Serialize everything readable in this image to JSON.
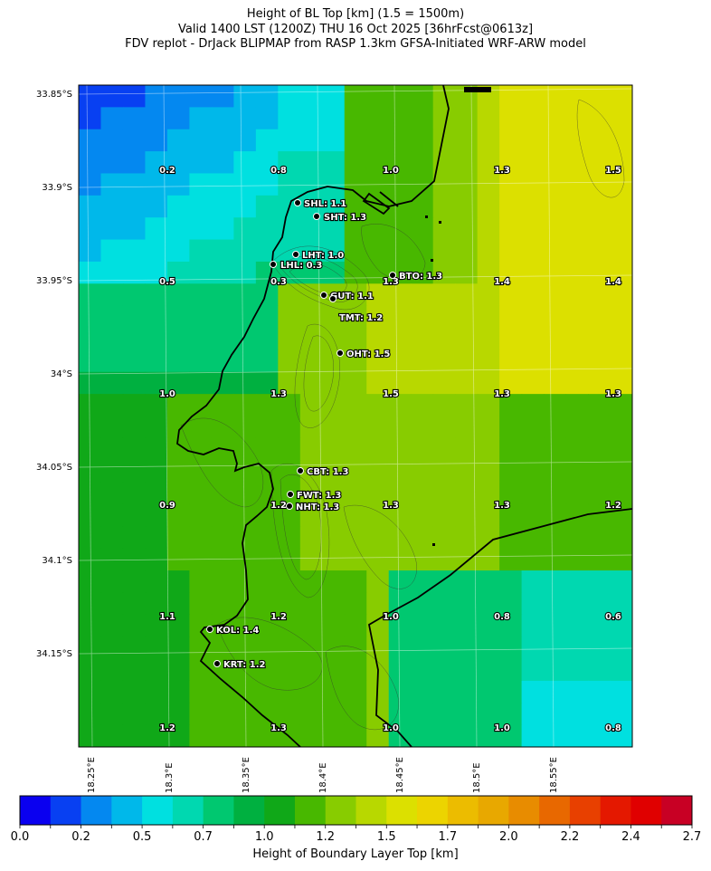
{
  "header": {
    "line1": "Height of BL Top [km] (1.5 = 1500m)",
    "line2": "Valid 1400 LST (1200Z) THU 16 Oct 2025 [36hrFcst@0613z]",
    "line3": "FDV replot - DrJack BLIPMAP from RASP 1.3km GFSA-Initiated WRF-ARW model"
  },
  "axes": {
    "lat_ticks": [
      "33.85°S",
      "33.9°S",
      "33.95°S",
      "34°S",
      "34.05°S",
      "34.1°S",
      "34.15°S"
    ],
    "lon_ticks": [
      "18.25°E",
      "18.3°E",
      "18.35°E",
      "18.4°E",
      "18.45°E",
      "18.5°E",
      "18.55°E"
    ]
  },
  "colorbar": {
    "label": "Height of Boundary Layer Top [km]",
    "ticks": [
      "0.0",
      "0.2",
      "0.5",
      "0.7",
      "1.0",
      "1.2",
      "1.5",
      "1.7",
      "2.0",
      "2.2",
      "2.4",
      "2.7"
    ],
    "colors": [
      "#0a00f0",
      "#0840f2",
      "#0488f0",
      "#00b8ea",
      "#00e0e0",
      "#00d8b0",
      "#00c870",
      "#00b040",
      "#10a818",
      "#48b800",
      "#88cc00",
      "#b8d800",
      "#dce000",
      "#ecd400",
      "#ecbc00",
      "#e8a800",
      "#e88c00",
      "#e86800",
      "#e84000",
      "#e41800",
      "#e00000",
      "#c80024"
    ]
  },
  "grid_values": [
    [
      "0.2",
      "0.8",
      "1.0",
      "1.3",
      "1.5"
    ],
    [
      "0.5",
      "0.3",
      "1.3",
      "1.4",
      "1.4"
    ],
    [
      "1.0",
      "1.3",
      "1.5",
      "1.3",
      "1.3"
    ],
    [
      "0.9",
      "1.2",
      "1.3",
      "1.3",
      "1.2"
    ],
    [
      "1.1",
      "1.2",
      "1.0",
      "0.8",
      "0.6"
    ],
    [
      "1.2",
      "1.3",
      "1.0",
      "1.0",
      "0.8"
    ]
  ],
  "sites": [
    {
      "label": "SHL: 1.1"
    },
    {
      "label": "SHT: 1.3"
    },
    {
      "label": "LHT: 1.0"
    },
    {
      "label": "LHL: 0.3"
    },
    {
      "label": "BTO: 1.3"
    },
    {
      "label": "GUT: 1.1"
    },
    {
      "label": "TMT: 1.2"
    },
    {
      "label": "OHT: 1.5"
    },
    {
      "label": "CBT: 1.3"
    },
    {
      "label": "FWT: 1.3"
    },
    {
      "label": "NHT: 1.3"
    },
    {
      "label": "KOL: 1.4"
    },
    {
      "label": "KRT: 1.2"
    }
  ]
}
